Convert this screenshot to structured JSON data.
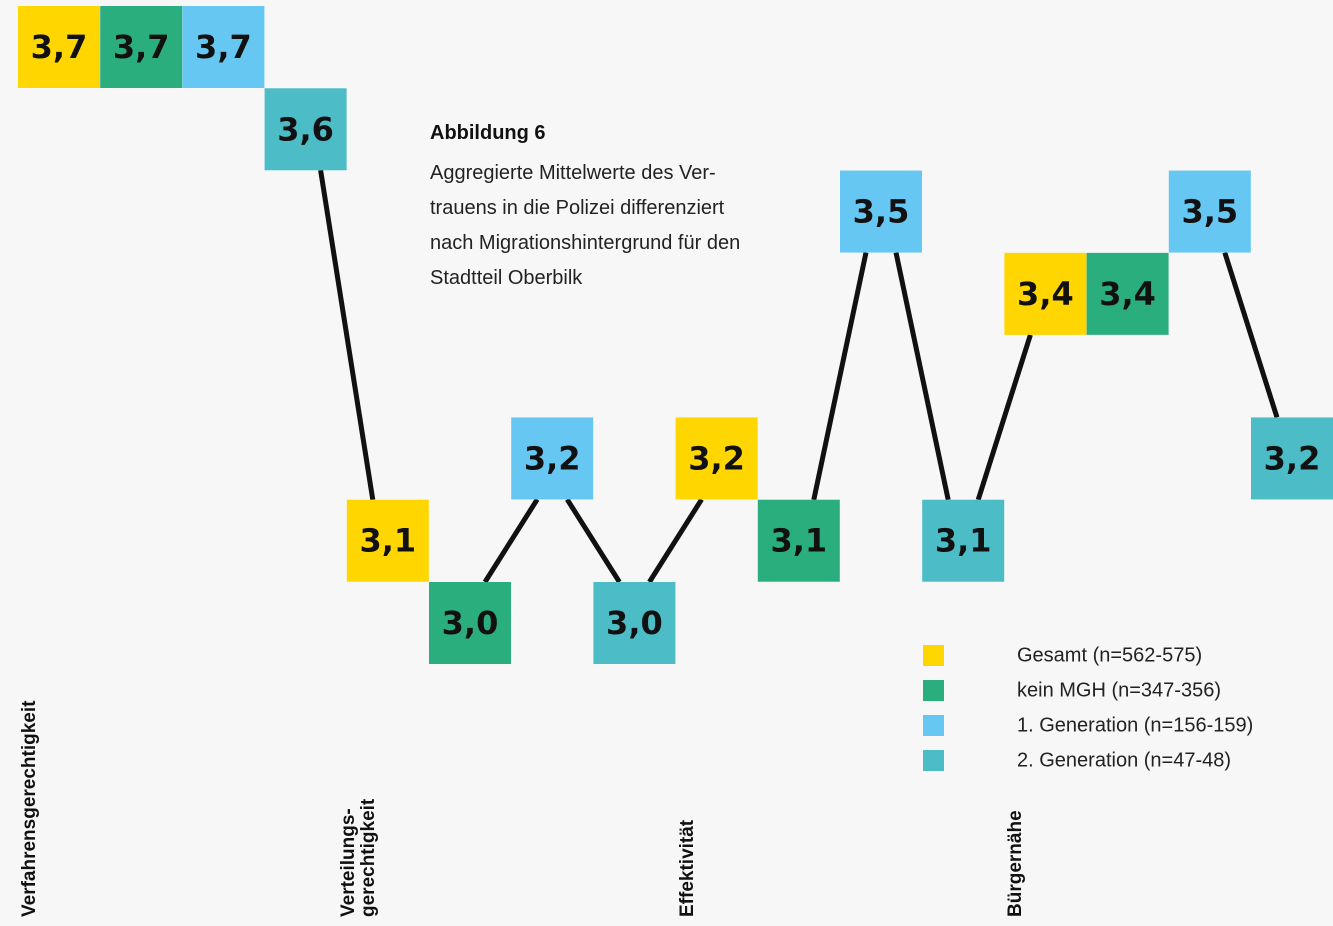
{
  "chart_data": {
    "type": "tile-line",
    "title": "Abbildung 6",
    "subtitle": "Aggregierte Mittelwerte des Ver-\ntrauens in die Polizei differenziert\nnach Migrationshintergrund für den\nStadtteil Oberbilk",
    "categories": [
      "Verfahrensgerechtigkeit",
      "Verteilungs-\ngerechtigkeit",
      "Effektivität",
      "Bürgernähe"
    ],
    "series": [
      {
        "name": "Gesamt (n=562-575)",
        "color": "#ffd600",
        "values": [
          3.7,
          3.1,
          3.2,
          3.4
        ],
        "value_labels": [
          "3,7",
          "3,1",
          "3,2",
          "3,4"
        ]
      },
      {
        "name": "kein MGH (n=347-356)",
        "color": "#2bae7e",
        "values": [
          3.7,
          3.0,
          3.1,
          3.4
        ],
        "value_labels": [
          "3,7",
          "3,0",
          "3,1",
          "3,4"
        ]
      },
      {
        "name": "1. Generation (n=156-159)",
        "color": "#66c8f2",
        "values": [
          3.7,
          3.2,
          3.5,
          3.5
        ],
        "value_labels": [
          "3,7",
          "3,2",
          "3,5",
          "3,5"
        ]
      },
      {
        "name": "2. Generation (n=47-48)",
        "color": "#4cbcc6",
        "values": [
          3.6,
          3.0,
          3.1,
          3.2
        ],
        "value_labels": [
          "3,6",
          "3,0",
          "3,1",
          "3,2"
        ]
      }
    ],
    "ylim": [
      3.0,
      3.7
    ]
  }
}
